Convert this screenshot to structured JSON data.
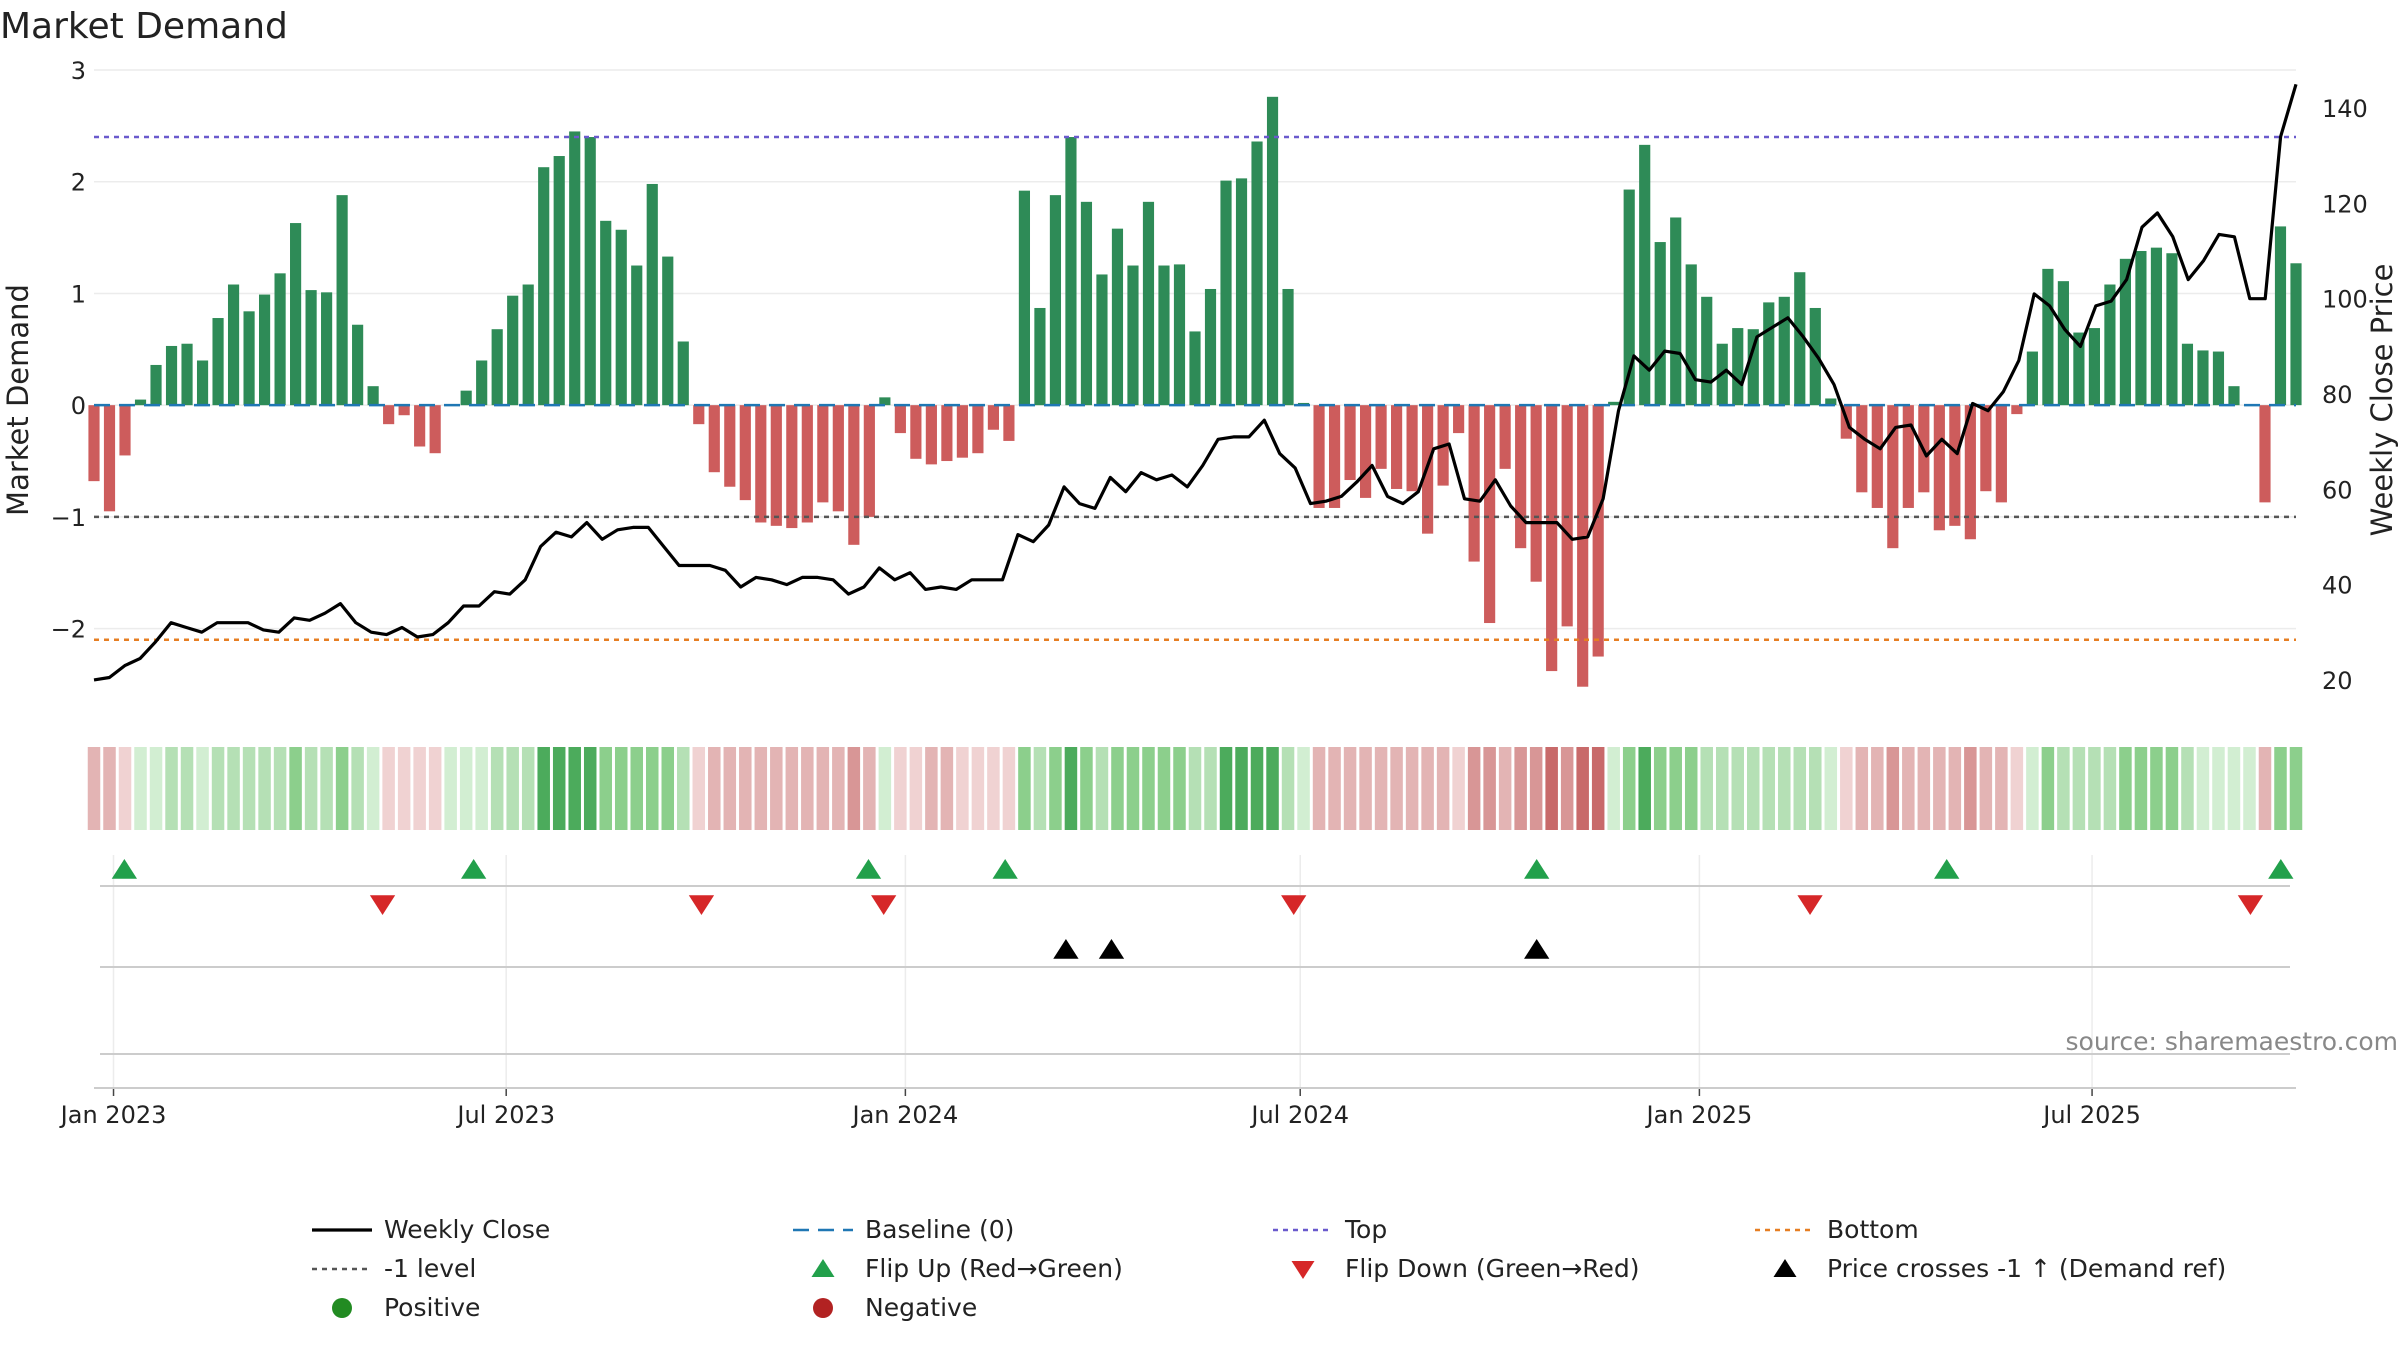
{
  "chart_data": {
    "type": "bar",
    "title": "Market Demand",
    "ylabel_left": "Market Demand",
    "ylabel_right": "Weekly Close Price",
    "source": "source: sharemaestro.com",
    "ylim_left": [
      -2.8,
      3.0
    ],
    "ylim_right": [
      12,
      148
    ],
    "yticks_left": [
      "−2",
      "−1",
      "0",
      "1",
      "2",
      "3"
    ],
    "ytick_values_left": [
      -2,
      -1,
      0,
      1,
      2,
      3
    ],
    "yticks_right": [
      "20",
      "40",
      "60",
      "80",
      "100",
      "120",
      "140"
    ],
    "ytick_values_right": [
      20,
      40,
      60,
      80,
      100,
      120,
      140
    ],
    "x_start_date": "2022-12-23",
    "x_end_date": "2025-10-03",
    "xticks": [
      {
        "label": "Jan 2023",
        "date": "2023-01-01"
      },
      {
        "label": "Jul 2023",
        "date": "2023-07-01"
      },
      {
        "label": "Jan 2024",
        "date": "2024-01-01"
      },
      {
        "label": "Jul 2024",
        "date": "2024-07-01"
      },
      {
        "label": "Jan 2025",
        "date": "2025-01-01"
      },
      {
        "label": "Jul 2025",
        "date": "2025-07-01"
      }
    ],
    "levels": {
      "top": 2.4,
      "minus_one": -1.0,
      "bottom": -2.1
    },
    "demand": [
      -0.68,
      -0.95,
      -0.45,
      0.05,
      0.36,
      0.53,
      0.55,
      0.4,
      0.78,
      1.08,
      0.84,
      0.99,
      1.18,
      1.63,
      1.03,
      1.01,
      1.88,
      0.72,
      0.17,
      -0.17,
      -0.09,
      -0.37,
      -0.43,
      0.0,
      0.13,
      0.4,
      0.68,
      0.98,
      1.08,
      2.13,
      2.23,
      2.45,
      2.4,
      1.65,
      1.57,
      1.25,
      1.98,
      1.33,
      0.57,
      -0.17,
      -0.6,
      -0.73,
      -0.85,
      -1.05,
      -1.08,
      -1.1,
      -1.05,
      -0.87,
      -0.95,
      -1.25,
      -1.0,
      0.07,
      -0.25,
      -0.48,
      -0.53,
      -0.5,
      -0.47,
      -0.43,
      -0.22,
      -0.32,
      1.92,
      0.87,
      1.88,
      2.4,
      1.82,
      1.17,
      1.58,
      1.25,
      1.82,
      1.25,
      1.26,
      0.66,
      1.04,
      2.01,
      2.03,
      2.36,
      2.76,
      1.04,
      0.02,
      -0.92,
      -0.92,
      -0.67,
      -0.83,
      -0.57,
      -0.75,
      -0.77,
      -1.15,
      -0.72,
      -0.25,
      -1.4,
      -1.95,
      -0.57,
      -1.28,
      -1.58,
      -2.38,
      -1.98,
      -2.52,
      -2.25,
      0.03,
      1.93,
      2.33,
      1.46,
      1.68,
      1.26,
      0.97,
      0.55,
      0.69,
      0.68,
      0.92,
      0.97,
      1.19,
      0.87,
      0.06,
      -0.3,
      -0.78,
      -0.92,
      -1.28,
      -0.92,
      -0.78,
      -1.12,
      -1.08,
      -1.2,
      -0.77,
      -0.87,
      -0.08,
      0.48,
      1.22,
      1.11,
      0.65,
      0.69,
      1.08,
      1.31,
      1.38,
      1.41,
      1.36,
      0.55,
      0.49,
      0.48,
      0.17,
      0.0,
      -0.87,
      1.6,
      1.27
    ],
    "weekly_close": [
      20,
      20.5,
      23,
      24.5,
      28,
      32,
      31,
      30,
      32,
      32,
      32,
      30.5,
      30,
      33,
      32.5,
      34,
      36,
      32,
      30,
      29.5,
      31,
      29,
      29.5,
      32,
      35.5,
      35.5,
      38.5,
      38,
      41,
      48,
      51,
      50,
      53,
      49.5,
      51.5,
      52,
      52,
      48,
      44,
      44,
      44,
      43,
      39.5,
      41.5,
      41,
      40,
      41.5,
      41.5,
      41,
      38,
      39.5,
      43.5,
      41,
      42.5,
      39,
      39.5,
      39,
      41,
      41,
      41,
      50.5,
      49,
      52.5,
      60.5,
      57,
      56,
      62.5,
      59.5,
      63.5,
      62,
      63,
      60.5,
      65,
      70.5,
      71,
      71,
      74.5,
      67.5,
      64.5,
      57,
      57.5,
      58.5,
      61.5,
      65,
      58.5,
      57,
      59.5,
      68.5,
      69.5,
      58,
      57.5,
      62,
      56.5,
      53,
      53,
      53,
      49.5,
      50,
      58,
      76.5,
      88,
      85,
      89,
      88.5,
      83,
      82.5,
      85,
      82,
      92,
      94,
      96,
      92,
      87.5,
      82,
      73,
      70.5,
      68.5,
      73,
      73.5,
      67,
      70.5,
      67.5,
      78,
      76.5,
      80.5,
      87,
      101,
      98.5,
      93.5,
      90,
      98.5,
      99.5,
      104,
      115,
      118,
      113,
      104,
      108,
      113.5,
      113,
      100,
      100,
      134,
      145
    ],
    "flips_up": [
      "2023-01-06",
      "2023-06-16",
      "2023-12-15",
      "2024-02-16",
      "2024-10-18",
      "2025-04-25",
      "2025-09-26"
    ],
    "flips_down": [
      "2023-05-05",
      "2023-09-29",
      "2023-12-22",
      "2024-06-28",
      "2025-02-21",
      "2025-09-12"
    ],
    "price_crosses": [
      "2024-03-15",
      "2024-04-05",
      "2024-10-18"
    ],
    "strip_colors": {
      "pos": [
        "#d2eed2",
        "#b5e0b5",
        "#8ccf8c",
        "#4cab5c"
      ],
      "neg": [
        "#f0d2d2",
        "#e3b4b4",
        "#d89696",
        "#c86a6a"
      ]
    },
    "colors": {
      "pos_bar": "#2e8b57",
      "neg_bar": "#cd5c5c",
      "price_line": "#000000",
      "baseline": "#1f77b4",
      "top": "#6a5acd",
      "minus_one": "#555555",
      "bottom": "#e67e22",
      "flip_up": "#22a04b",
      "flip_down": "#d62728",
      "cross": "#000000",
      "positive": "#228b22",
      "negative": "#b22222"
    },
    "legend": [
      {
        "label": "Weekly Close",
        "kind": "line"
      },
      {
        "label": "Baseline (0)",
        "kind": "dash"
      },
      {
        "label": "Top",
        "kind": "dot-purple"
      },
      {
        "label": "Bottom",
        "kind": "dot-orange"
      },
      {
        "label": "-1 level",
        "kind": "dot-gray"
      },
      {
        "label": "Flip Up (Red→Green)",
        "kind": "tri-up-green"
      },
      {
        "label": "Flip Down (Green→Red)",
        "kind": "tri-down-red"
      },
      {
        "label": "Price crosses -1 ↑ (Demand ref)",
        "kind": "tri-up-black"
      },
      {
        "label": "Positive",
        "kind": "dot-green"
      },
      {
        "label": "Negative",
        "kind": "dot-red"
      }
    ]
  }
}
